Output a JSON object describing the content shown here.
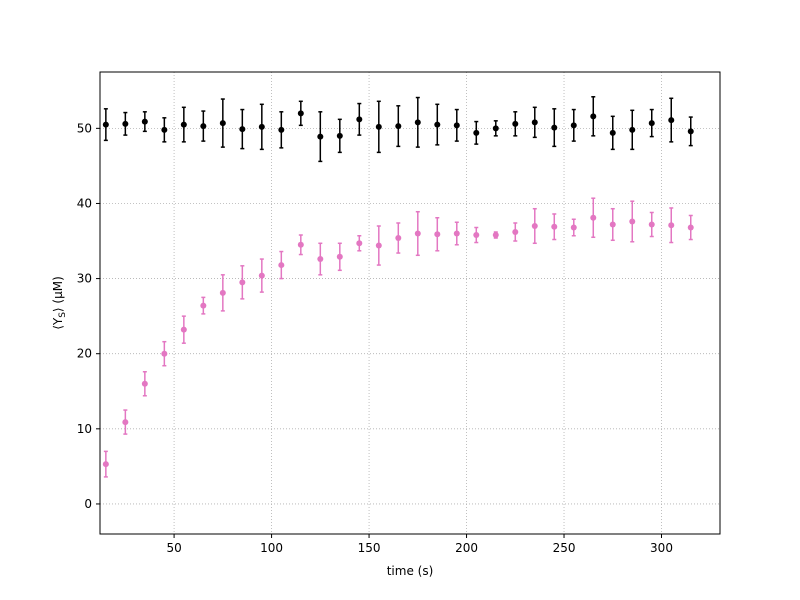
{
  "chart_data": {
    "type": "scatter",
    "xlabel": "time (s)",
    "ylabel": "⟨Y_S⟩ (μM)",
    "xlim": [
      12,
      330
    ],
    "ylim": [
      -4,
      57.5
    ],
    "xticks": [
      50,
      100,
      150,
      200,
      250,
      300
    ],
    "yticks": [
      0,
      10,
      20,
      30,
      40,
      50
    ],
    "grid": true,
    "x": [
      15,
      25,
      35,
      45,
      55,
      65,
      75,
      85,
      95,
      105,
      115,
      125,
      135,
      145,
      155,
      165,
      175,
      185,
      195,
      205,
      215,
      225,
      235,
      245,
      255,
      265,
      275,
      285,
      295,
      305,
      315
    ],
    "series": [
      {
        "color": "#000000",
        "values": [
          50.5,
          50.6,
          50.9,
          49.8,
          50.5,
          50.3,
          50.7,
          49.9,
          50.2,
          49.8,
          52.0,
          48.9,
          49.0,
          51.2,
          50.2,
          50.3,
          50.8,
          50.5,
          50.4,
          49.4,
          50.0,
          50.6,
          50.8,
          50.1,
          50.4,
          51.6,
          49.4,
          49.8,
          50.7,
          51.1,
          49.6
        ],
        "errors": [
          2.1,
          1.5,
          1.3,
          1.6,
          2.3,
          2.0,
          3.2,
          2.6,
          3.0,
          2.4,
          1.6,
          3.3,
          2.2,
          2.1,
          3.4,
          2.7,
          3.3,
          2.7,
          2.1,
          1.5,
          1.0,
          1.6,
          2.0,
          2.5,
          2.1,
          2.6,
          2.2,
          2.6,
          1.8,
          2.9,
          1.9
        ]
      },
      {
        "color": "#e377c2",
        "values": [
          5.3,
          10.9,
          16.0,
          20.0,
          23.2,
          26.4,
          28.1,
          29.5,
          30.4,
          31.8,
          34.5,
          32.6,
          32.9,
          34.7,
          34.4,
          35.4,
          36.0,
          35.9,
          36.0,
          35.8,
          35.8,
          36.2,
          37.0,
          36.9,
          36.8,
          38.1,
          37.2,
          37.6,
          37.2,
          37.1,
          36.8
        ],
        "errors": [
          1.7,
          1.6,
          1.6,
          1.6,
          1.8,
          1.1,
          2.4,
          2.2,
          2.2,
          1.8,
          1.3,
          2.1,
          1.8,
          1.0,
          2.6,
          2.0,
          2.9,
          2.2,
          1.5,
          1.0,
          0.4,
          1.2,
          2.3,
          1.7,
          1.1,
          2.6,
          2.1,
          2.7,
          1.6,
          2.3,
          1.6
        ]
      }
    ]
  }
}
